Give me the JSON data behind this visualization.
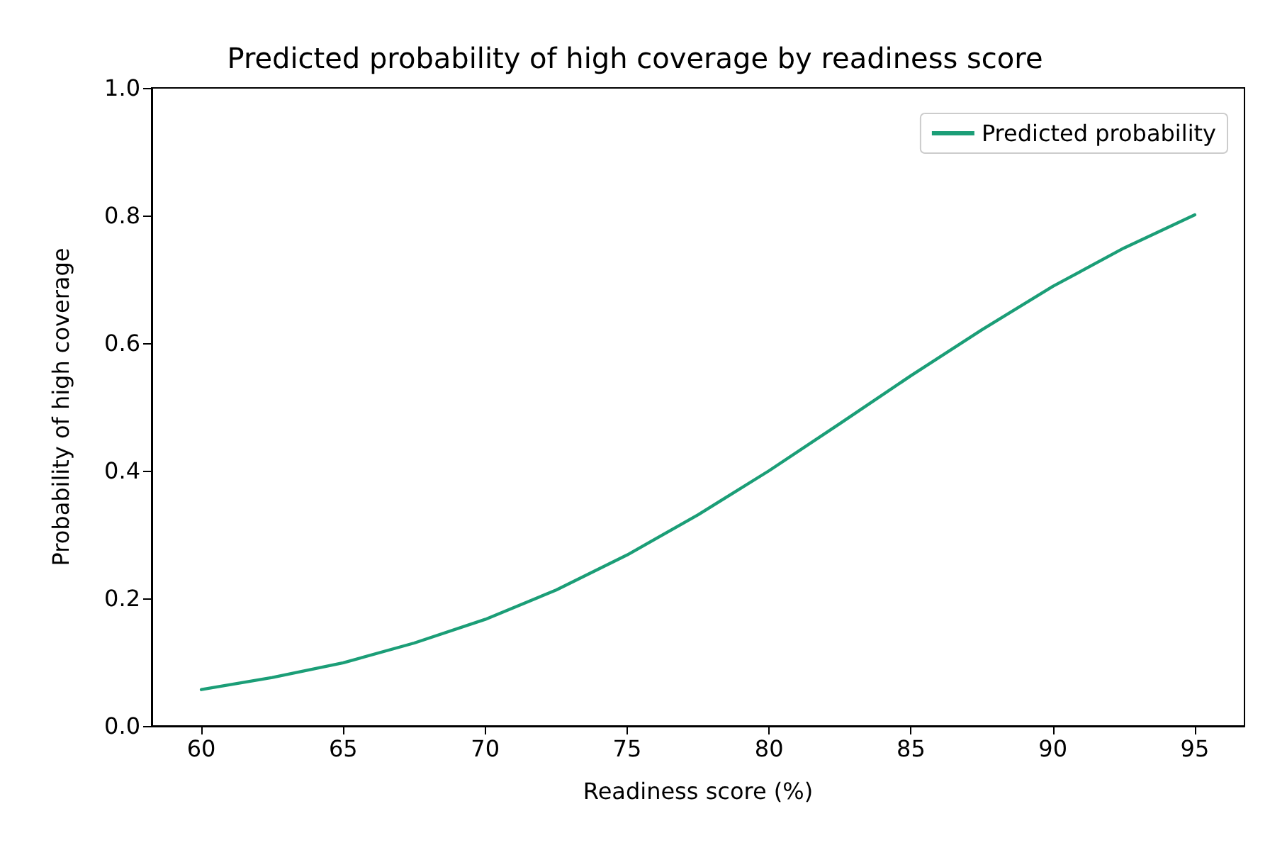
{
  "chart_data": {
    "type": "line",
    "title": "Predicted probability of high coverage by readiness score",
    "xlabel": "Readiness score (%)",
    "ylabel": "Probability of high coverage",
    "x": [
      60,
      62.5,
      65,
      67.5,
      70,
      72.5,
      75,
      77.5,
      80,
      82.5,
      85,
      87.5,
      90,
      92.5,
      95
    ],
    "series": [
      {
        "name": "Predicted probability",
        "color": "#1b9e77",
        "values": [
          0.057,
          0.076,
          0.099,
          0.13,
          0.167,
          0.213,
          0.268,
          0.331,
          0.4,
          0.474,
          0.549,
          0.621,
          0.689,
          0.749,
          0.801
        ]
      }
    ],
    "xlim": [
      58.25,
      96.75
    ],
    "xticks": [
      60,
      65,
      70,
      75,
      80,
      85,
      90,
      95
    ],
    "ylim": [
      0,
      1
    ],
    "yticks": [
      {
        "value": 0,
        "label": "0.0"
      },
      0.2,
      0.4,
      0.6,
      0.8,
      {
        "value": 1,
        "label": "1.0"
      }
    ],
    "grid": false,
    "legend": "top right",
    "marker": "none",
    "line_style": "solid"
  }
}
